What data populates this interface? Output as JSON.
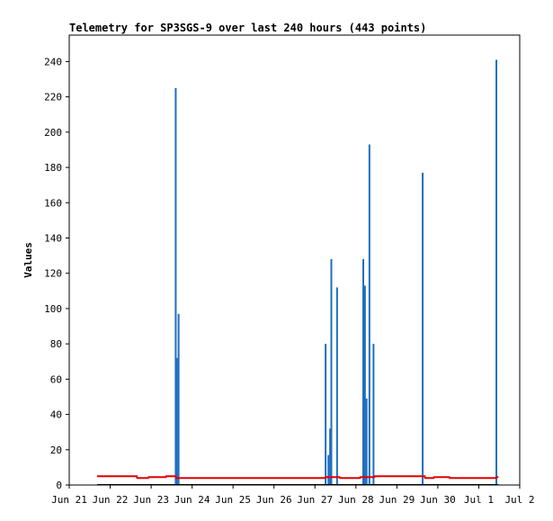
{
  "chart_data": {
    "type": "bar",
    "title": "Telemetry for SP3SGS-9 over last 240 hours (443 points)",
    "ylabel": "Values",
    "xlabel": "",
    "ylim": [
      0,
      255
    ],
    "xlim": [
      0,
      11
    ],
    "x_unit": "days since Jun 21 00:00",
    "x_ticks": [
      {
        "x": 0,
        "label": "Jun 21"
      },
      {
        "x": 1,
        "label": "Jun 22"
      },
      {
        "x": 2,
        "label": "Jun 23"
      },
      {
        "x": 3,
        "label": "Jun 24"
      },
      {
        "x": 4,
        "label": "Jun 25"
      },
      {
        "x": 5,
        "label": "Jun 26"
      },
      {
        "x": 6,
        "label": "Jun 27"
      },
      {
        "x": 7,
        "label": "Jun 28"
      },
      {
        "x": 8,
        "label": "Jun 29"
      },
      {
        "x": 9,
        "label": "Jun 30"
      },
      {
        "x": 10,
        "label": "Jul 1"
      },
      {
        "x": 11,
        "label": "Jul 2"
      }
    ],
    "y_ticks": [
      0,
      20,
      40,
      60,
      80,
      100,
      120,
      140,
      160,
      180,
      200,
      220,
      240
    ],
    "grid": false,
    "colors": {
      "bars": "#1f6fc0",
      "line": "#e00000",
      "baseline": "#000000"
    },
    "series": [
      {
        "type": "bar",
        "points": [
          {
            "x": 2.6,
            "y": 225
          },
          {
            "x": 2.63,
            "y": 72
          },
          {
            "x": 2.67,
            "y": 97
          },
          {
            "x": 6.26,
            "y": 80
          },
          {
            "x": 6.33,
            "y": 17
          },
          {
            "x": 6.37,
            "y": 32
          },
          {
            "x": 6.4,
            "y": 128
          },
          {
            "x": 6.54,
            "y": 112
          },
          {
            "x": 7.18,
            "y": 128
          },
          {
            "x": 7.22,
            "y": 113
          },
          {
            "x": 7.26,
            "y": 49
          },
          {
            "x": 7.33,
            "y": 193
          },
          {
            "x": 7.43,
            "y": 80
          },
          {
            "x": 8.63,
            "y": 177
          },
          {
            "x": 10.43,
            "y": 241
          }
        ]
      },
      {
        "type": "line",
        "points": [
          {
            "x": 0.68,
            "y": 5
          },
          {
            "x": 1.65,
            "y": 5
          },
          {
            "x": 1.66,
            "y": 4
          },
          {
            "x": 1.93,
            "y": 4
          },
          {
            "x": 1.94,
            "y": 4.5
          },
          {
            "x": 2.36,
            "y": 4.5
          },
          {
            "x": 2.37,
            "y": 5
          },
          {
            "x": 2.6,
            "y": 5
          },
          {
            "x": 2.61,
            "y": 4
          },
          {
            "x": 6.26,
            "y": 4
          },
          {
            "x": 6.27,
            "y": 4.5
          },
          {
            "x": 6.6,
            "y": 4.5
          },
          {
            "x": 6.61,
            "y": 4
          },
          {
            "x": 7.1,
            "y": 4
          },
          {
            "x": 7.11,
            "y": 4.5
          },
          {
            "x": 7.45,
            "y": 4.5
          },
          {
            "x": 7.46,
            "y": 5
          },
          {
            "x": 8.68,
            "y": 5
          },
          {
            "x": 8.69,
            "y": 4
          },
          {
            "x": 8.9,
            "y": 4
          },
          {
            "x": 8.91,
            "y": 4.5
          },
          {
            "x": 9.28,
            "y": 4.5
          },
          {
            "x": 9.29,
            "y": 4
          },
          {
            "x": 10.42,
            "y": 4
          },
          {
            "x": 10.43,
            "y": 4.5
          },
          {
            "x": 10.48,
            "y": 4.5
          }
        ]
      }
    ]
  }
}
